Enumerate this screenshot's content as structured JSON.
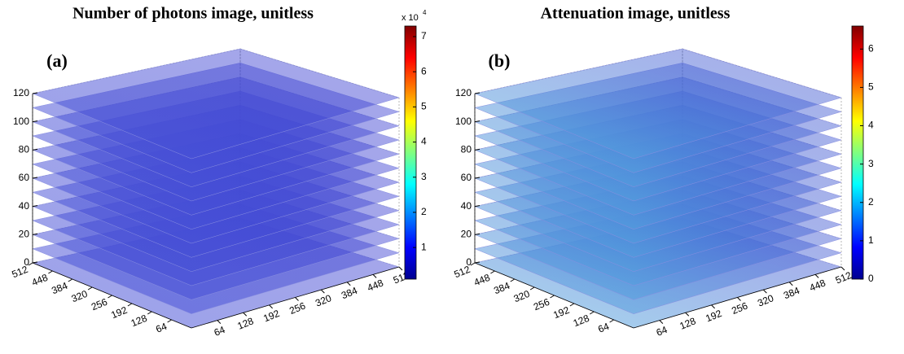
{
  "chart_data": [
    {
      "type": "slice3d",
      "title": "Number of photons image, unitless",
      "panel_label": "(a)",
      "zlim": [
        0,
        120
      ],
      "zticks": [
        0,
        20,
        40,
        60,
        80,
        100,
        120
      ],
      "xlim": [
        0,
        512
      ],
      "xticks": [
        64,
        128,
        192,
        256,
        320,
        384,
        448,
        512
      ],
      "ylim": [
        0,
        512
      ],
      "yticks": [
        512,
        448,
        384,
        320,
        256,
        192,
        128,
        64
      ],
      "slices": [
        0,
        10,
        20,
        30,
        40,
        50,
        60,
        70,
        80,
        90,
        100,
        110,
        120
      ],
      "colormap": "jet",
      "slice_color": "#4a55d8",
      "colorbar": {
        "clim": [
          0.1,
          7.3
        ],
        "ticks": [
          1,
          2,
          3,
          4,
          5,
          6,
          7
        ],
        "multiplier_base": "x 10",
        "multiplier_exponent": "4"
      }
    },
    {
      "type": "slice3d",
      "title": "Attenuation image, unitless",
      "panel_label": "(b)",
      "zlim": [
        0,
        120
      ],
      "zticks": [
        0,
        20,
        40,
        60,
        80,
        100,
        120
      ],
      "xlim": [
        0,
        512
      ],
      "xticks": [
        64,
        128,
        192,
        256,
        320,
        384,
        448,
        512
      ],
      "ylim": [
        0,
        512
      ],
      "yticks": [
        512,
        448,
        384,
        320,
        256,
        192,
        128,
        64
      ],
      "slices": [
        0,
        10,
        20,
        30,
        40,
        50,
        60,
        70,
        80,
        90,
        100,
        110,
        120
      ],
      "colormap": "jet",
      "slice_color": "#5ab8e0",
      "colorbar": {
        "clim": [
          0,
          6.6
        ],
        "ticks": [
          0,
          1,
          2,
          3,
          4,
          5,
          6
        ]
      }
    }
  ]
}
